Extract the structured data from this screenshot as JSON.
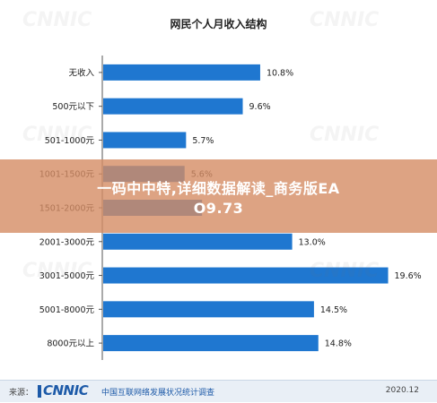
{
  "chart_data": {
    "type": "bar",
    "orientation": "horizontal",
    "title": "网民个人月收入结构",
    "categories": [
      "无收入",
      "500元以下",
      "501-1000元",
      "1001-1500元",
      "1501-2000元",
      "2001-3000元",
      "3001-5000元",
      "5001-8000元",
      "8000元以上"
    ],
    "values": [
      10.8,
      9.6,
      5.7,
      5.6,
      6.8,
      13.0,
      19.6,
      14.5,
      14.8
    ],
    "data_labels": [
      "10.8%",
      "9.6%",
      "5.7%",
      "5.6%",
      "",
      "13.0%",
      "19.6%",
      "14.5%",
      "14.8%"
    ],
    "xlim": [
      0,
      20
    ],
    "bar_color": "#1f77d0",
    "grid": false
  },
  "overlay": {
    "line1": "一码中中特,详细数据解读_商务版EA",
    "line2": "O9.73",
    "color": "#d48c64"
  },
  "footer": {
    "source_label": "来源：",
    "logo_text": "CNNIC",
    "org_name": "中国互联网络发展状况统计调查",
    "date": "2020.12"
  },
  "watermark_text": "CNNIC"
}
